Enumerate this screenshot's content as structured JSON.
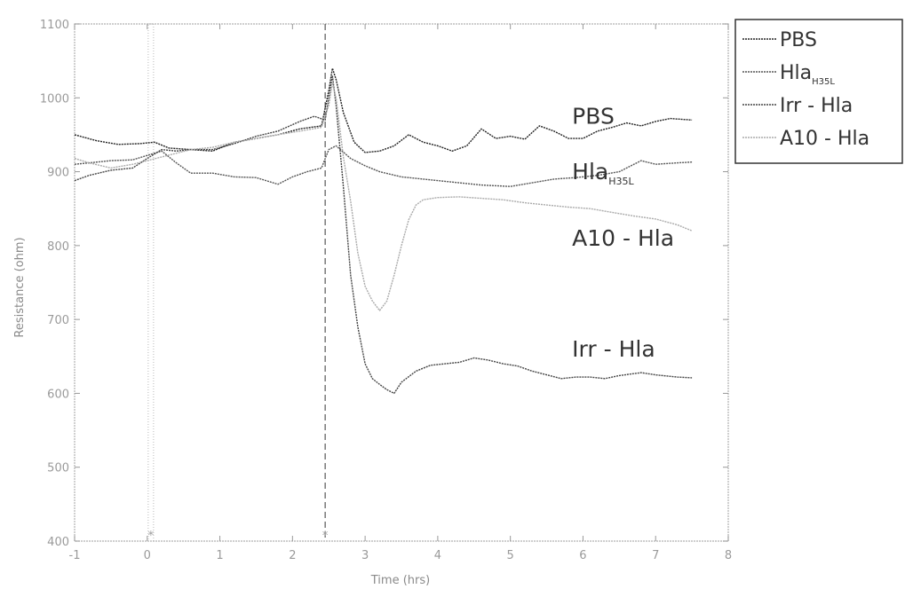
{
  "chart_data": {
    "type": "line",
    "xlabel": "Time (hrs)",
    "ylabel": "Resistance (ohm)",
    "xlim": [
      -1,
      8
    ],
    "ylim": [
      400,
      1100
    ],
    "xticks": [
      "-1",
      "0",
      "1",
      "2",
      "3",
      "4",
      "5",
      "6",
      "7",
      "8"
    ],
    "yticks": [
      "400",
      "500",
      "600",
      "700",
      "800",
      "900",
      "1000",
      "1100"
    ],
    "grid": false,
    "legend_position": "outside-top-right",
    "vlines": [
      {
        "x": 0.05,
        "style": "dotted",
        "marker_label": "*"
      },
      {
        "x": 2.45,
        "style": "dashed",
        "marker_label": "*"
      }
    ],
    "series": [
      {
        "name": "PBS",
        "color": "#222222",
        "dash": "solid",
        "points": [
          [
            -1,
            950
          ],
          [
            -0.7,
            942
          ],
          [
            -0.4,
            937
          ],
          [
            -0.1,
            938
          ],
          [
            0.1,
            940
          ],
          [
            0.3,
            932
          ],
          [
            0.6,
            930
          ],
          [
            0.9,
            928
          ],
          [
            1.2,
            940
          ],
          [
            1.5,
            945
          ],
          [
            1.8,
            950
          ],
          [
            2.1,
            958
          ],
          [
            2.4,
            962
          ],
          [
            2.5,
            1010
          ],
          [
            2.55,
            1040
          ],
          [
            2.6,
            1025
          ],
          [
            2.7,
            980
          ],
          [
            2.85,
            940
          ],
          [
            3.0,
            926
          ],
          [
            3.2,
            928
          ],
          [
            3.4,
            935
          ],
          [
            3.6,
            950
          ],
          [
            3.8,
            940
          ],
          [
            4.0,
            935
          ],
          [
            4.2,
            928
          ],
          [
            4.4,
            935
          ],
          [
            4.6,
            958
          ],
          [
            4.8,
            945
          ],
          [
            5.0,
            948
          ],
          [
            5.2,
            944
          ],
          [
            5.4,
            962
          ],
          [
            5.6,
            955
          ],
          [
            5.8,
            945
          ],
          [
            6.0,
            945
          ],
          [
            6.2,
            955
          ],
          [
            6.4,
            960
          ],
          [
            6.6,
            966
          ],
          [
            6.8,
            962
          ],
          [
            7.0,
            968
          ],
          [
            7.2,
            972
          ],
          [
            7.5,
            970
          ]
        ]
      },
      {
        "name": "Hla_H35L",
        "label_main": "Hla",
        "label_sub": "H35L",
        "color": "#555555",
        "dash": "solid",
        "points": [
          [
            -1,
            910
          ],
          [
            -0.8,
            912
          ],
          [
            -0.5,
            915
          ],
          [
            -0.2,
            916
          ],
          [
            0.0,
            922
          ],
          [
            0.2,
            928
          ],
          [
            0.4,
            912
          ],
          [
            0.6,
            898
          ],
          [
            0.9,
            898
          ],
          [
            1.2,
            893
          ],
          [
            1.5,
            892
          ],
          [
            1.8,
            883
          ],
          [
            2.0,
            893
          ],
          [
            2.2,
            900
          ],
          [
            2.4,
            905
          ],
          [
            2.5,
            930
          ],
          [
            2.6,
            935
          ],
          [
            2.8,
            918
          ],
          [
            3.0,
            908
          ],
          [
            3.2,
            900
          ],
          [
            3.5,
            893
          ],
          [
            3.8,
            890
          ],
          [
            4.0,
            888
          ],
          [
            4.3,
            885
          ],
          [
            4.6,
            882
          ],
          [
            5.0,
            880
          ],
          [
            5.3,
            885
          ],
          [
            5.6,
            890
          ],
          [
            5.9,
            892
          ],
          [
            6.2,
            895
          ],
          [
            6.5,
            900
          ],
          [
            6.8,
            915
          ],
          [
            7.0,
            910
          ],
          [
            7.3,
            912
          ],
          [
            7.5,
            913
          ]
        ]
      },
      {
        "name": "Irr - Hla",
        "color": "#444444",
        "dash": "solid",
        "points": [
          [
            -1,
            888
          ],
          [
            -0.8,
            895
          ],
          [
            -0.5,
            902
          ],
          [
            -0.2,
            905
          ],
          [
            0.0,
            918
          ],
          [
            0.2,
            930
          ],
          [
            0.4,
            928
          ],
          [
            0.6,
            930
          ],
          [
            0.9,
            930
          ],
          [
            1.2,
            938
          ],
          [
            1.5,
            948
          ],
          [
            1.8,
            955
          ],
          [
            2.1,
            968
          ],
          [
            2.3,
            975
          ],
          [
            2.45,
            970
          ],
          [
            2.5,
            1000
          ],
          [
            2.55,
            1030
          ],
          [
            2.6,
            990
          ],
          [
            2.7,
            880
          ],
          [
            2.8,
            760
          ],
          [
            2.9,
            690
          ],
          [
            3.0,
            640
          ],
          [
            3.1,
            620
          ],
          [
            3.2,
            612
          ],
          [
            3.3,
            605
          ],
          [
            3.4,
            600
          ],
          [
            3.5,
            615
          ],
          [
            3.7,
            630
          ],
          [
            3.9,
            638
          ],
          [
            4.1,
            640
          ],
          [
            4.3,
            642
          ],
          [
            4.5,
            648
          ],
          [
            4.7,
            645
          ],
          [
            4.9,
            640
          ],
          [
            5.1,
            637
          ],
          [
            5.3,
            630
          ],
          [
            5.5,
            625
          ],
          [
            5.7,
            620
          ],
          [
            5.9,
            622
          ],
          [
            6.1,
            622
          ],
          [
            6.3,
            620
          ],
          [
            6.5,
            624
          ],
          [
            6.8,
            628
          ],
          [
            7.0,
            625
          ],
          [
            7.3,
            622
          ],
          [
            7.5,
            621
          ]
        ]
      },
      {
        "name": "A10 - Hla",
        "color": "#aaaaaa",
        "dash": "solid",
        "points": [
          [
            -1,
            918
          ],
          [
            -0.8,
            912
          ],
          [
            -0.5,
            905
          ],
          [
            -0.2,
            910
          ],
          [
            0.0,
            915
          ],
          [
            0.2,
            920
          ],
          [
            0.4,
            925
          ],
          [
            0.6,
            930
          ],
          [
            0.9,
            933
          ],
          [
            1.2,
            940
          ],
          [
            1.5,
            945
          ],
          [
            1.8,
            950
          ],
          [
            2.1,
            955
          ],
          [
            2.4,
            960
          ],
          [
            2.5,
            990
          ],
          [
            2.55,
            1020
          ],
          [
            2.6,
            1000
          ],
          [
            2.7,
            920
          ],
          [
            2.8,
            860
          ],
          [
            2.9,
            790
          ],
          [
            3.0,
            745
          ],
          [
            3.1,
            725
          ],
          [
            3.2,
            712
          ],
          [
            3.3,
            725
          ],
          [
            3.4,
            760
          ],
          [
            3.5,
            800
          ],
          [
            3.6,
            835
          ],
          [
            3.7,
            855
          ],
          [
            3.8,
            862
          ],
          [
            4.0,
            865
          ],
          [
            4.3,
            866
          ],
          [
            4.6,
            864
          ],
          [
            4.9,
            862
          ],
          [
            5.2,
            858
          ],
          [
            5.5,
            855
          ],
          [
            5.8,
            852
          ],
          [
            6.1,
            850
          ],
          [
            6.4,
            845
          ],
          [
            6.7,
            840
          ],
          [
            7.0,
            836
          ],
          [
            7.3,
            828
          ],
          [
            7.5,
            820
          ]
        ]
      }
    ],
    "annotations": [
      {
        "text": "PBS",
        "x": 5.85,
        "y": 965
      },
      {
        "text_main": "Hla",
        "text_sub": "H35L",
        "x": 5.85,
        "y": 890
      },
      {
        "text": "A10 - Hla",
        "x": 5.85,
        "y": 800
      },
      {
        "text": "Irr - Hla",
        "x": 5.85,
        "y": 650
      }
    ]
  }
}
